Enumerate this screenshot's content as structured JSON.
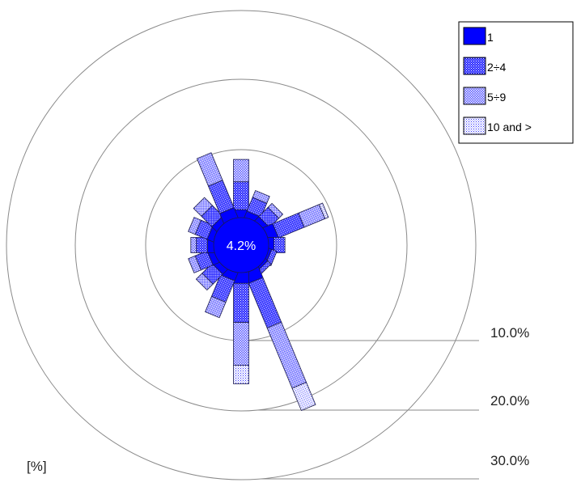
{
  "chart_data": {
    "type": "wind-rose",
    "calm_label": "4.2%",
    "unit_label": "[%]",
    "radial_rings": [
      {
        "value": 10,
        "label": "10.0%"
      },
      {
        "value": 20,
        "label": "20.0%"
      },
      {
        "value": 30,
        "label": "30.0%"
      }
    ],
    "legend": [
      {
        "label": "1",
        "color": "#0000ff",
        "pattern": "solid"
      },
      {
        "label": "2÷4",
        "color": "#3b3bff",
        "pattern": "dense"
      },
      {
        "label": "5÷9",
        "color": "#6a6aff",
        "pattern": "medium"
      },
      {
        "label": "10 and >",
        "color": "#9a9aff",
        "pattern": "light"
      }
    ],
    "sectors": [
      {
        "direction_deg": 0,
        "values": [
          1.2,
          3.0,
          2.4,
          0.0
        ]
      },
      {
        "direction_deg": 22.5,
        "values": [
          1.0,
          1.6,
          0.8,
          0.0
        ]
      },
      {
        "direction_deg": 45,
        "values": [
          0.9,
          1.4,
          0.6,
          0.0
        ]
      },
      {
        "direction_deg": 67.5,
        "values": [
          1.4,
          3.0,
          2.4,
          0.4
        ]
      },
      {
        "direction_deg": 90,
        "values": [
          0.9,
          1.2,
          0.0,
          0.0
        ]
      },
      {
        "direction_deg": 112.5,
        "values": [
          0.6,
          0.6,
          0.0,
          0.0
        ]
      },
      {
        "direction_deg": 135,
        "values": [
          0.6,
          0.5,
          0.0,
          0.0
        ]
      },
      {
        "direction_deg": 157.5,
        "values": [
          1.5,
          5.2,
          7.0,
          2.6
        ]
      },
      {
        "direction_deg": 180,
        "values": [
          1.5,
          4.2,
          4.6,
          2.0
        ]
      },
      {
        "direction_deg": 202.5,
        "values": [
          1.2,
          2.5,
          1.8,
          0.0
        ]
      },
      {
        "direction_deg": 225,
        "values": [
          1.0,
          1.5,
          0.9,
          0.0
        ]
      },
      {
        "direction_deg": 247.5,
        "values": [
          1.0,
          1.4,
          0.8,
          0.0
        ]
      },
      {
        "direction_deg": 270,
        "values": [
          1.0,
          1.2,
          0.6,
          0.0
        ]
      },
      {
        "direction_deg": 292.5,
        "values": [
          1.0,
          1.4,
          0.8,
          0.0
        ]
      },
      {
        "direction_deg": 315,
        "values": [
          1.0,
          1.6,
          1.2,
          0.0
        ]
      },
      {
        "direction_deg": 337.5,
        "values": [
          1.4,
          3.2,
          3.2,
          0.0
        ]
      }
    ]
  }
}
